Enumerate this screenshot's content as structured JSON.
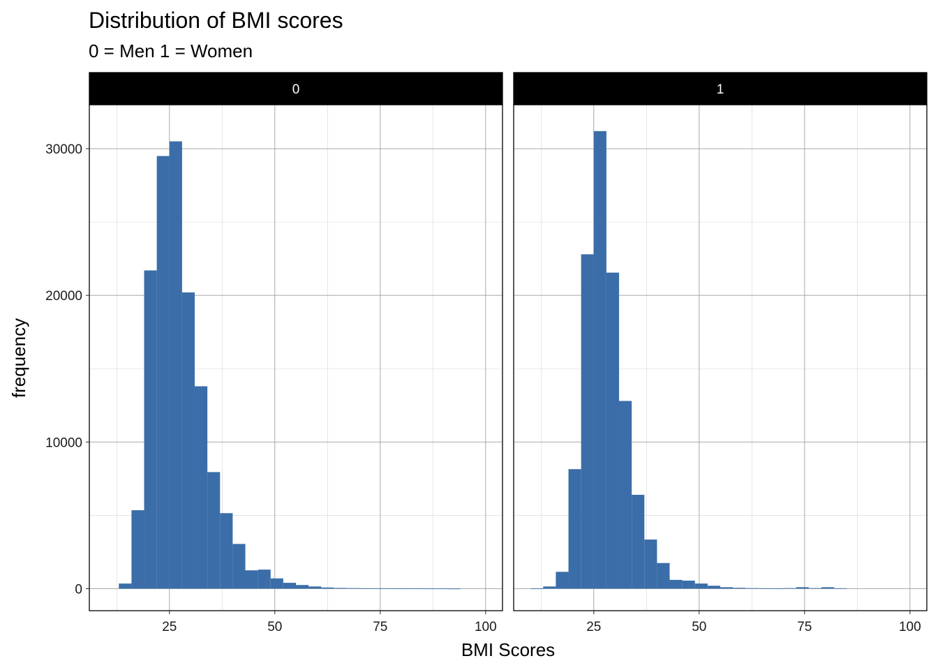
{
  "chart_data": {
    "type": "bar",
    "title": "Distribution of BMI scores",
    "subtitle": "0 = Men  1 = Women",
    "xlabel": "BMI Scores",
    "ylabel": "frequency",
    "xlim": [
      6,
      104
    ],
    "ylim": [
      -1500,
      33000
    ],
    "x_ticks": [
      25,
      50,
      75,
      100
    ],
    "y_ticks": [
      0,
      10000,
      20000,
      30000
    ],
    "bin_width": 3,
    "grid": true,
    "bar_color": "#3B6EA8",
    "facets": [
      {
        "label": "0",
        "bins": [
          {
            "x0": 13,
            "x1": 16,
            "value": 350
          },
          {
            "x0": 16,
            "x1": 19,
            "value": 5350
          },
          {
            "x0": 19,
            "x1": 22,
            "value": 21700
          },
          {
            "x0": 22,
            "x1": 25,
            "value": 29500
          },
          {
            "x0": 25,
            "x1": 28,
            "value": 30500
          },
          {
            "x0": 28,
            "x1": 31,
            "value": 20200
          },
          {
            "x0": 31,
            "x1": 34,
            "value": 13800
          },
          {
            "x0": 34,
            "x1": 37,
            "value": 7950
          },
          {
            "x0": 37,
            "x1": 40,
            "value": 5150
          },
          {
            "x0": 40,
            "x1": 43,
            "value": 3050
          },
          {
            "x0": 43,
            "x1": 46,
            "value": 1250
          },
          {
            "x0": 46,
            "x1": 49,
            "value": 1300
          },
          {
            "x0": 49,
            "x1": 52,
            "value": 700
          },
          {
            "x0": 52,
            "x1": 55,
            "value": 400
          },
          {
            "x0": 55,
            "x1": 58,
            "value": 250
          },
          {
            "x0": 58,
            "x1": 61,
            "value": 150
          },
          {
            "x0": 61,
            "x1": 64,
            "value": 80
          },
          {
            "x0": 64,
            "x1": 67,
            "value": 50
          },
          {
            "x0": 67,
            "x1": 70,
            "value": 40
          },
          {
            "x0": 70,
            "x1": 73,
            "value": 30
          },
          {
            "x0": 73,
            "x1": 76,
            "value": 30
          },
          {
            "x0": 76,
            "x1": 79,
            "value": 25
          },
          {
            "x0": 79,
            "x1": 82,
            "value": 20
          },
          {
            "x0": 82,
            "x1": 85,
            "value": 20
          },
          {
            "x0": 85,
            "x1": 88,
            "value": 15
          },
          {
            "x0": 88,
            "x1": 91,
            "value": 15
          },
          {
            "x0": 91,
            "x1": 94,
            "value": 10
          }
        ]
      },
      {
        "label": "1",
        "bins": [
          {
            "x0": 10,
            "x1": 13,
            "value": 20
          },
          {
            "x0": 13,
            "x1": 16,
            "value": 150
          },
          {
            "x0": 16,
            "x1": 19,
            "value": 1150
          },
          {
            "x0": 19,
            "x1": 22,
            "value": 8150
          },
          {
            "x0": 22,
            "x1": 25,
            "value": 22800
          },
          {
            "x0": 25,
            "x1": 28,
            "value": 31200
          },
          {
            "x0": 28,
            "x1": 31,
            "value": 21550
          },
          {
            "x0": 31,
            "x1": 34,
            "value": 12800
          },
          {
            "x0": 34,
            "x1": 37,
            "value": 6400
          },
          {
            "x0": 37,
            "x1": 40,
            "value": 3350
          },
          {
            "x0": 40,
            "x1": 43,
            "value": 1750
          },
          {
            "x0": 43,
            "x1": 46,
            "value": 600
          },
          {
            "x0": 46,
            "x1": 49,
            "value": 550
          },
          {
            "x0": 49,
            "x1": 52,
            "value": 350
          },
          {
            "x0": 52,
            "x1": 55,
            "value": 200
          },
          {
            "x0": 55,
            "x1": 58,
            "value": 100
          },
          {
            "x0": 58,
            "x1": 61,
            "value": 60
          },
          {
            "x0": 61,
            "x1": 64,
            "value": 40
          },
          {
            "x0": 64,
            "x1": 67,
            "value": 30
          },
          {
            "x0": 67,
            "x1": 70,
            "value": 20
          },
          {
            "x0": 70,
            "x1": 73,
            "value": 40
          },
          {
            "x0": 73,
            "x1": 76,
            "value": 100
          },
          {
            "x0": 76,
            "x1": 79,
            "value": 40
          },
          {
            "x0": 79,
            "x1": 82,
            "value": 100
          },
          {
            "x0": 82,
            "x1": 85,
            "value": 30
          }
        ]
      }
    ]
  }
}
